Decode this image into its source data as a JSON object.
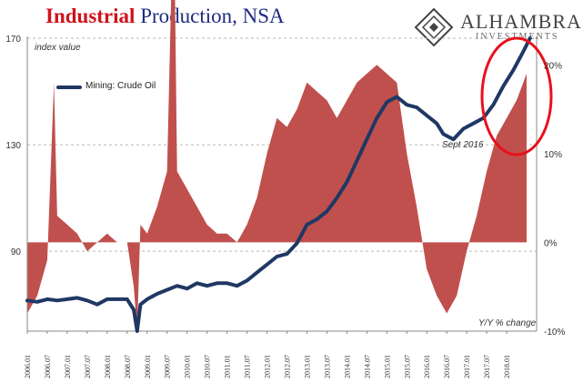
{
  "title": {
    "part1": "Industrial",
    "part2": "Production, NSA"
  },
  "brand": {
    "name": "ALHAMBRA",
    "sub": "INVESTMENTS",
    "icon": "alhambra-logo-icon"
  },
  "colors": {
    "level": "#1f3864",
    "yoy": "#c0504d",
    "highlight": "#e8101d",
    "grid": "#b8b8b8"
  },
  "chart_data": {
    "type": "line",
    "y_left": {
      "label": "index value",
      "ticks": [
        170,
        130,
        90
      ],
      "ylim": [
        60,
        170
      ]
    },
    "y_right": {
      "label": "Y/Y % change",
      "ticks": [
        "20%",
        "10%",
        "0%",
        "-10%"
      ],
      "ylim": [
        -10,
        23
      ]
    },
    "x_tick_labels": [
      "2006.01",
      "2006.07",
      "2007.01",
      "2007.07",
      "2008.01",
      "2008.07",
      "2009.01",
      "2009.07",
      "2010.01",
      "2010.07",
      "2011.01",
      "2011.07",
      "2012.01",
      "2012.07",
      "2013.01",
      "2013.07",
      "2014.01",
      "2014.07",
      "2015.01",
      "2015.07",
      "2016.01",
      "2016.07",
      "2017.01",
      "2017.07",
      "2018.01"
    ],
    "grid": true,
    "annotation": "Sept 2016",
    "series": [
      {
        "name": "Mining: Crude Oil",
        "kind": "line",
        "axis": "left",
        "points": [
          [
            "2006.01",
            71.5
          ],
          [
            "2006.04",
            71
          ],
          [
            "2006.07",
            72
          ],
          [
            "2006.10",
            71.5
          ],
          [
            "2007.01",
            72
          ],
          [
            "2007.04",
            72.5
          ],
          [
            "2007.07",
            71.5
          ],
          [
            "2007.10",
            70
          ],
          [
            "2008.01",
            72
          ],
          [
            "2008.04",
            72
          ],
          [
            "2008.07",
            72
          ],
          [
            "2008.09",
            68
          ],
          [
            "2008.10",
            60
          ],
          [
            "2008.11",
            70
          ],
          [
            "2009.01",
            72
          ],
          [
            "2009.04",
            74
          ],
          [
            "2009.07",
            75.5
          ],
          [
            "2009.10",
            77
          ],
          [
            "2010.01",
            76
          ],
          [
            "2010.04",
            78
          ],
          [
            "2010.07",
            77
          ],
          [
            "2010.10",
            78
          ],
          [
            "2011.01",
            78
          ],
          [
            "2011.04",
            77
          ],
          [
            "2011.07",
            79
          ],
          [
            "2011.10",
            82
          ],
          [
            "2012.01",
            85
          ],
          [
            "2012.04",
            88
          ],
          [
            "2012.07",
            89
          ],
          [
            "2012.10",
            93
          ],
          [
            "2013.01",
            100
          ],
          [
            "2013.04",
            102
          ],
          [
            "2013.07",
            105
          ],
          [
            "2013.10",
            110
          ],
          [
            "2014.01",
            116
          ],
          [
            "2014.04",
            124
          ],
          [
            "2014.07",
            132
          ],
          [
            "2014.10",
            140
          ],
          [
            "2015.01",
            146
          ],
          [
            "2015.04",
            148
          ],
          [
            "2015.07",
            145
          ],
          [
            "2015.10",
            144
          ],
          [
            "2016.01",
            141
          ],
          [
            "2016.04",
            138
          ],
          [
            "2016.06",
            134
          ],
          [
            "2016.09",
            132
          ],
          [
            "2016.12",
            136
          ],
          [
            "2017.03",
            138
          ],
          [
            "2017.06",
            140
          ],
          [
            "2017.09",
            145
          ],
          [
            "2017.12",
            152
          ],
          [
            "2018.03",
            158
          ],
          [
            "2018.06",
            165
          ],
          [
            "2018.08",
            170
          ]
        ]
      },
      {
        "name": "Y/Y % change",
        "kind": "area",
        "axis": "right",
        "points": [
          [
            "2006.01",
            -8
          ],
          [
            "2006.04",
            -6
          ],
          [
            "2006.07",
            -2
          ],
          [
            "2006.09",
            18
          ],
          [
            "2006.10",
            3
          ],
          [
            "2007.01",
            2
          ],
          [
            "2007.04",
            1
          ],
          [
            "2007.07",
            -1
          ],
          [
            "2007.10",
            0
          ],
          [
            "2008.01",
            1
          ],
          [
            "2008.04",
            0
          ],
          [
            "2008.07",
            0
          ],
          [
            "2008.09",
            -5
          ],
          [
            "2008.10",
            -10
          ],
          [
            "2008.11",
            2
          ],
          [
            "2009.01",
            1
          ],
          [
            "2009.04",
            4
          ],
          [
            "2009.07",
            8
          ],
          [
            "2009.09",
            40
          ],
          [
            "2009.10",
            8
          ],
          [
            "2010.01",
            6
          ],
          [
            "2010.04",
            4
          ],
          [
            "2010.07",
            2
          ],
          [
            "2010.10",
            1
          ],
          [
            "2011.01",
            1
          ],
          [
            "2011.04",
            0
          ],
          [
            "2011.07",
            2
          ],
          [
            "2011.10",
            5
          ],
          [
            "2012.01",
            10
          ],
          [
            "2012.04",
            14
          ],
          [
            "2012.07",
            13
          ],
          [
            "2012.10",
            15
          ],
          [
            "2013.01",
            18
          ],
          [
            "2013.04",
            17
          ],
          [
            "2013.07",
            16
          ],
          [
            "2013.10",
            14
          ],
          [
            "2014.01",
            16
          ],
          [
            "2014.04",
            18
          ],
          [
            "2014.07",
            19
          ],
          [
            "2014.10",
            20
          ],
          [
            "2015.01",
            19
          ],
          [
            "2015.04",
            18
          ],
          [
            "2015.07",
            10
          ],
          [
            "2015.10",
            4
          ],
          [
            "2016.01",
            -3
          ],
          [
            "2016.04",
            -6
          ],
          [
            "2016.07",
            -8
          ],
          [
            "2016.10",
            -6
          ],
          [
            "2017.01",
            -1
          ],
          [
            "2017.04",
            3
          ],
          [
            "2017.07",
            8
          ],
          [
            "2017.10",
            12
          ],
          [
            "2018.01",
            14
          ],
          [
            "2018.04",
            16
          ],
          [
            "2018.07",
            19
          ]
        ]
      }
    ]
  }
}
